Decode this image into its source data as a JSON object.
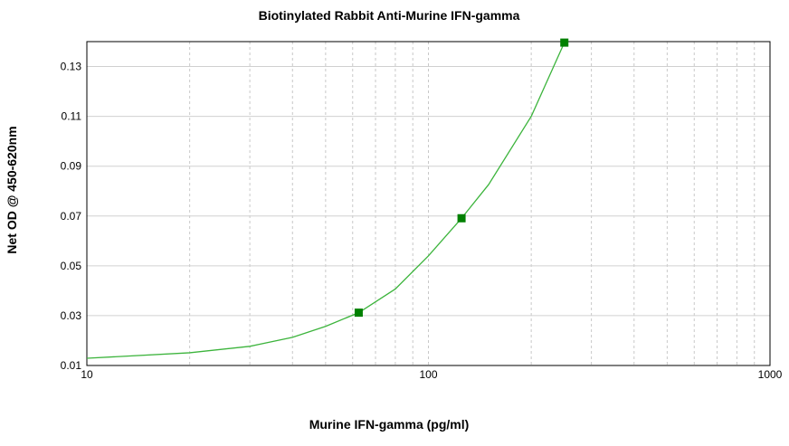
{
  "chart_data": {
    "type": "scatter",
    "title": "Biotinylated Rabbit Anti-Murine IFN-gamma",
    "x_label": "Murine IFN-gamma (pg/ml)",
    "y_label": "Net OD @ 450-620nm",
    "x_log": true,
    "grid": true,
    "xlim": [
      10,
      1000
    ],
    "ylim": [
      0.01,
      0.14
    ],
    "xticks": [
      10,
      100,
      1000
    ],
    "yticks": [
      0.01,
      0.03,
      0.05,
      0.07,
      0.09,
      0.11,
      0.13
    ],
    "series": [
      {
        "x": [
          62.5,
          125,
          250
        ],
        "values": [
          0.0312,
          0.0691,
          0.1396
        ],
        "color": "#008000"
      }
    ],
    "fit": {
      "x": [
        10,
        20,
        30,
        40,
        50,
        62.5,
        80,
        100,
        125,
        150,
        200,
        250
      ],
      "values": [
        0.0129,
        0.0151,
        0.0177,
        0.0213,
        0.0257,
        0.0312,
        0.0407,
        0.054,
        0.0691,
        0.0826,
        0.11,
        0.1396
      ],
      "color": "#3cb43c"
    }
  }
}
